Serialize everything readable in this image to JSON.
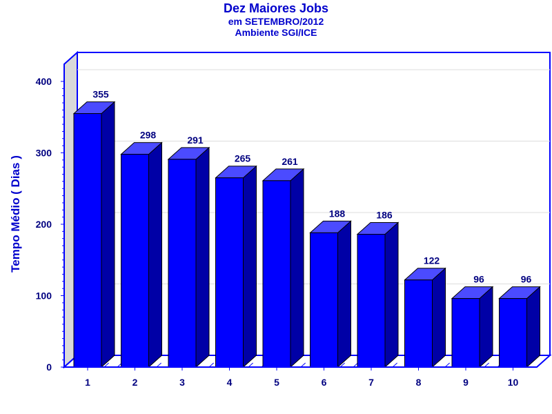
{
  "chart_data": {
    "type": "bar",
    "title": "Dez Maiores Jobs",
    "subtitle": [
      "em SETEMBRO/2012",
      "Ambiente SGI/ICE"
    ],
    "xlabel": "",
    "ylabel": "Tempo Médio ( Dias )",
    "categories": [
      "1",
      "2",
      "3",
      "4",
      "5",
      "6",
      "7",
      "8",
      "9",
      "10"
    ],
    "values": [
      355,
      298,
      291,
      265,
      261,
      188,
      186,
      122,
      96,
      96
    ],
    "ylim": [
      0,
      400
    ],
    "yticks": [
      0,
      100,
      200,
      300,
      400
    ],
    "grid": true,
    "legend": "none",
    "style": "3d"
  },
  "colors": {
    "bar_front": "#0000ff",
    "bar_top": "#4b4bff",
    "bar_side": "#0000a6",
    "frame": "#0000ff",
    "text": "#000080",
    "title": "#0000cc",
    "wall": "#d9d9d9",
    "grid": "#dcdcdc"
  }
}
